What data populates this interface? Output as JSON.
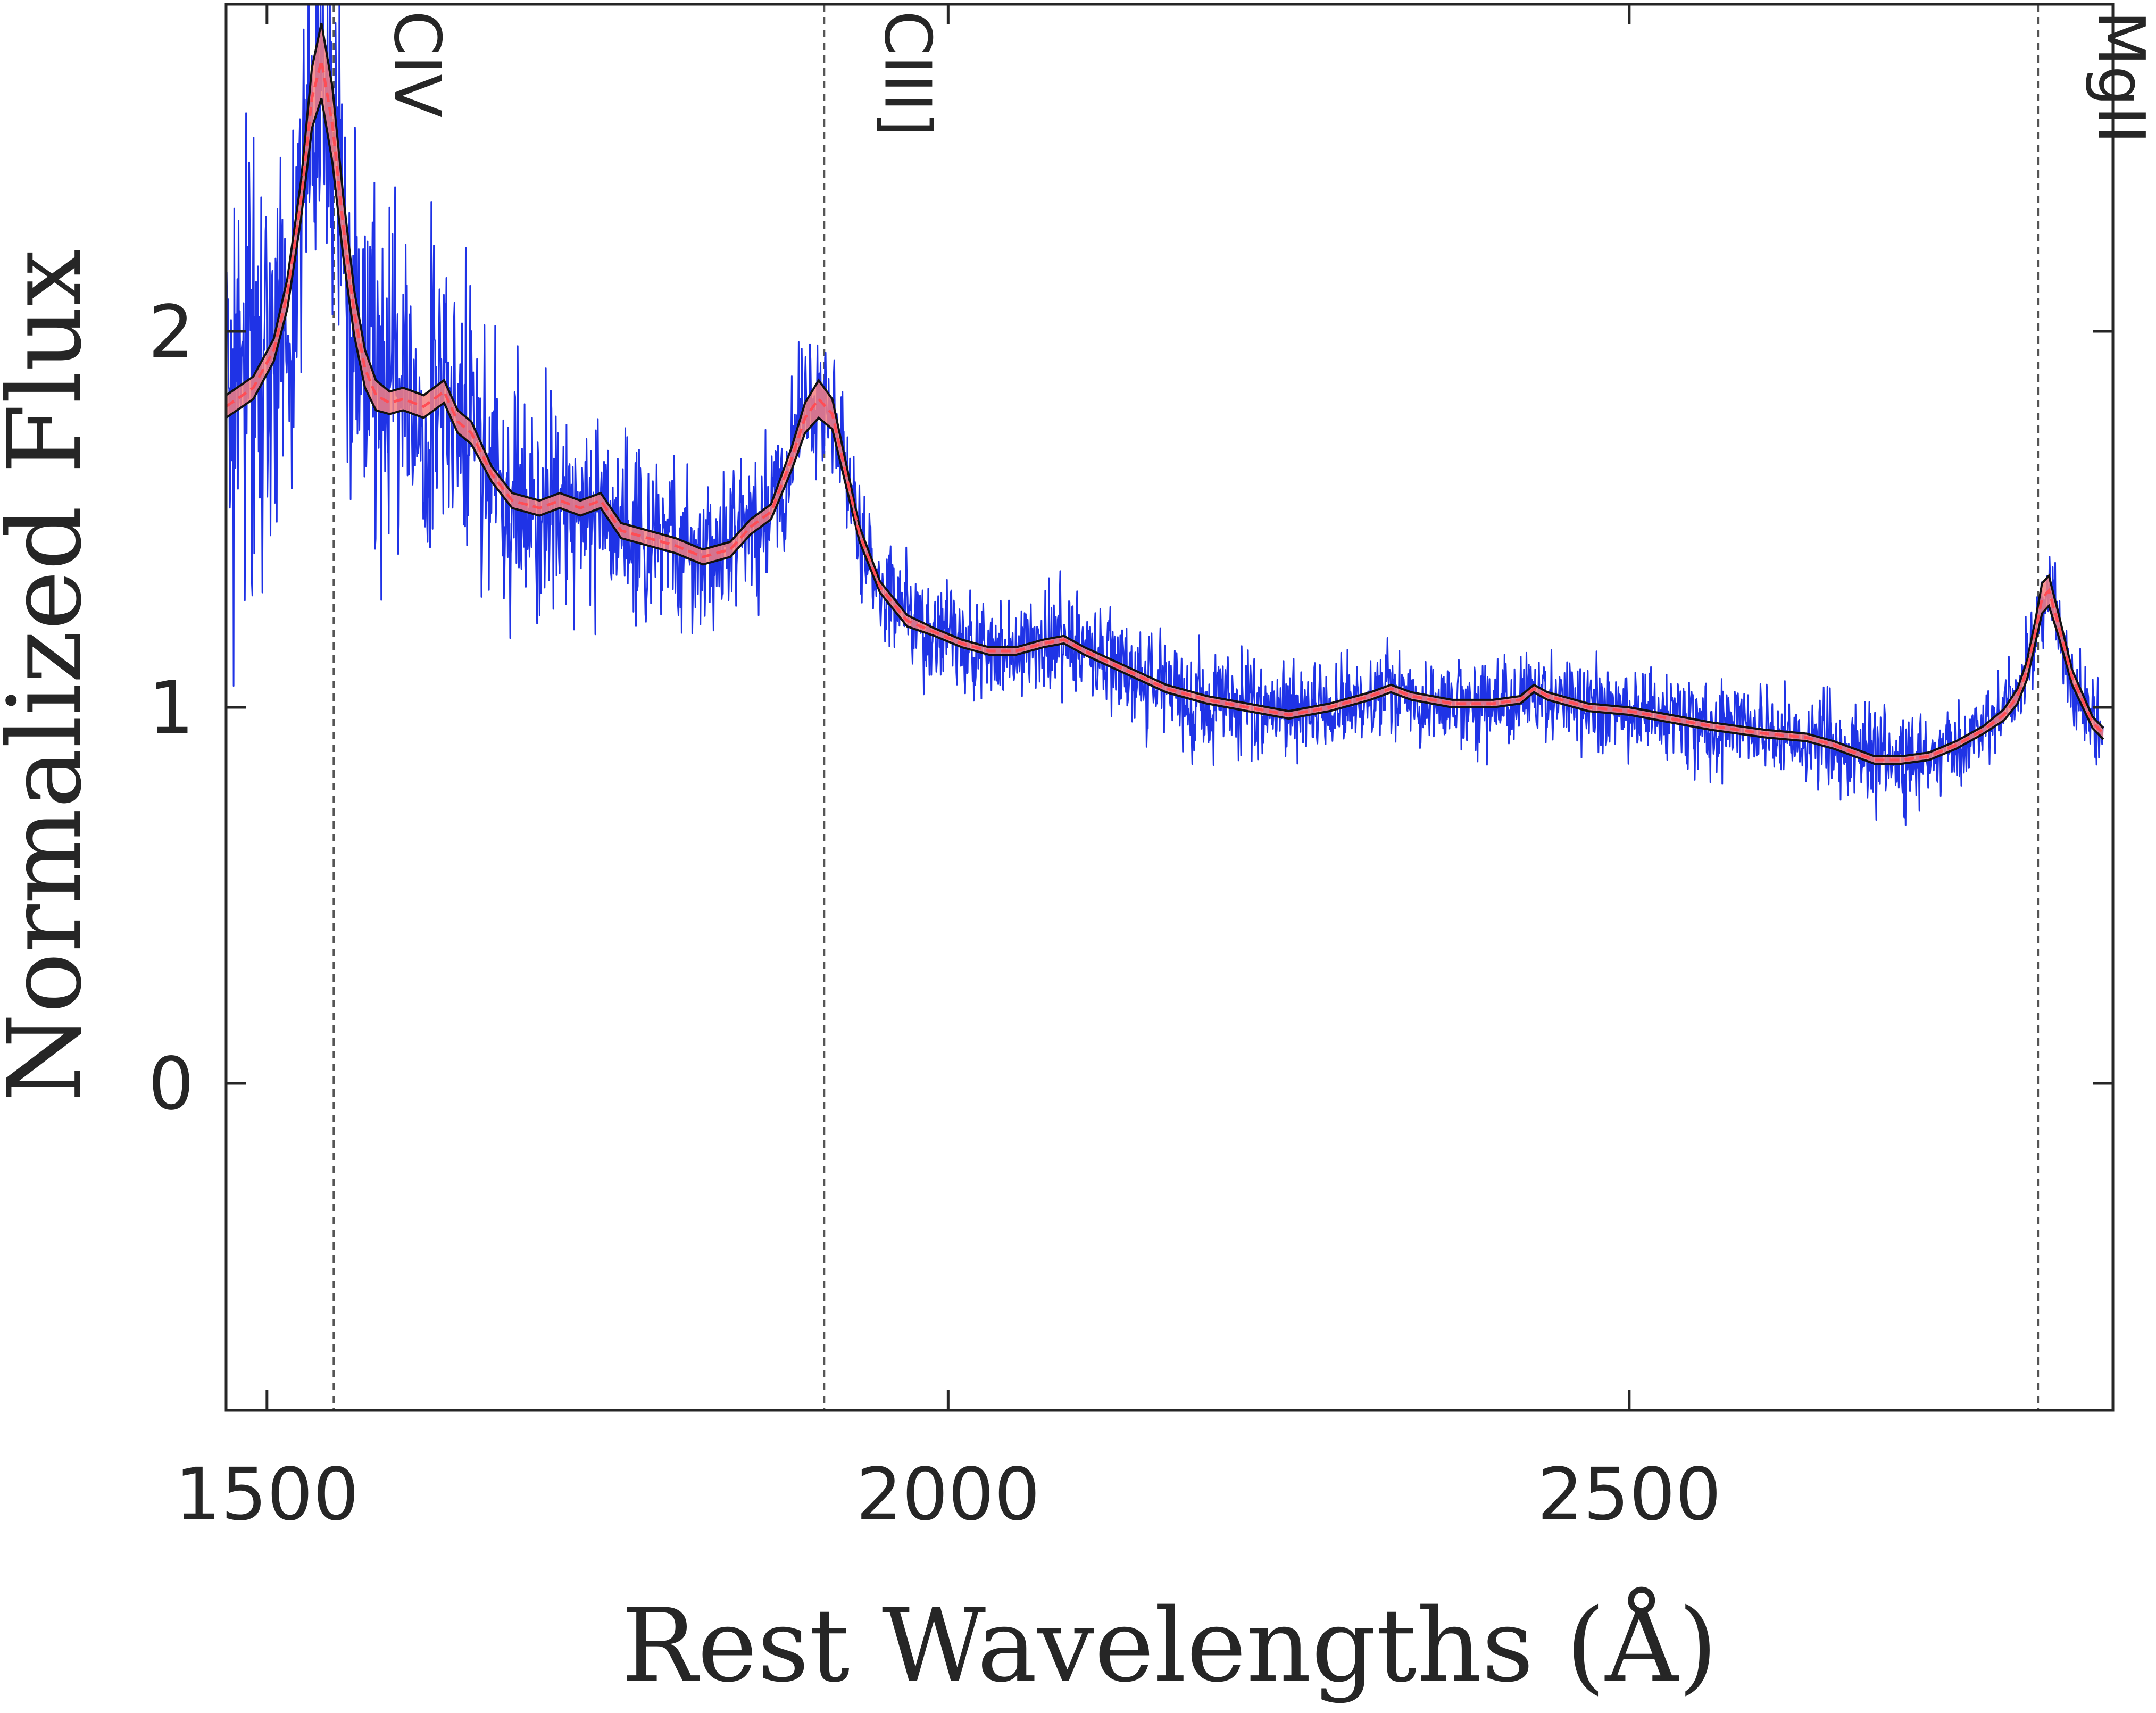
{
  "chart_data": {
    "type": "line",
    "title": "",
    "xlabel": "Rest Wavelengths (Å)",
    "ylabel": "Normalized Flux",
    "xlim": [
      1470,
      2855
    ],
    "ylim": [
      -0.87,
      2.87
    ],
    "xticks": [
      1500,
      2000,
      2500
    ],
    "yticks": [
      0,
      1,
      2
    ],
    "grid": false,
    "legend": "none",
    "colors": {
      "observed": "#1f33e6",
      "band_fill": "#f58080",
      "band_edge": "#111111",
      "model_line": "#ff4d55",
      "reference_line": "#555555",
      "axes": "#262626"
    },
    "reference_lines": [
      {
        "name": "CIV",
        "x": 1549
      },
      {
        "name": "CIII]",
        "x": 1909
      },
      {
        "name": "MgII",
        "x": 2800
      }
    ],
    "model": {
      "x": [
        1470,
        1490,
        1505,
        1515,
        1525,
        1533,
        1540,
        1548,
        1556,
        1564,
        1572,
        1580,
        1590,
        1600,
        1615,
        1630,
        1640,
        1650,
        1665,
        1680,
        1700,
        1715,
        1730,
        1745,
        1760,
        1780,
        1800,
        1820,
        1840,
        1855,
        1870,
        1885,
        1895,
        1905,
        1915,
        1925,
        1935,
        1950,
        1970,
        1990,
        2010,
        2030,
        2050,
        2070,
        2085,
        2100,
        2130,
        2160,
        2190,
        2220,
        2250,
        2280,
        2310,
        2325,
        2340,
        2370,
        2400,
        2420,
        2430,
        2440,
        2470,
        2500,
        2530,
        2560,
        2600,
        2630,
        2650,
        2680,
        2700,
        2720,
        2740,
        2760,
        2775,
        2785,
        2792,
        2798,
        2803,
        2808,
        2815,
        2825,
        2840,
        2848
      ],
      "y": [
        1.8,
        1.85,
        1.95,
        2.1,
        2.35,
        2.62,
        2.72,
        2.55,
        2.28,
        2.05,
        1.9,
        1.83,
        1.81,
        1.82,
        1.8,
        1.84,
        1.76,
        1.73,
        1.62,
        1.55,
        1.53,
        1.55,
        1.53,
        1.55,
        1.47,
        1.45,
        1.43,
        1.4,
        1.42,
        1.48,
        1.52,
        1.66,
        1.77,
        1.82,
        1.78,
        1.62,
        1.46,
        1.32,
        1.23,
        1.2,
        1.17,
        1.15,
        1.15,
        1.17,
        1.18,
        1.15,
        1.1,
        1.05,
        1.02,
        1.0,
        0.98,
        1.0,
        1.03,
        1.05,
        1.03,
        1.01,
        1.01,
        1.02,
        1.05,
        1.03,
        1.0,
        0.99,
        0.97,
        0.95,
        0.93,
        0.92,
        0.9,
        0.86,
        0.86,
        0.87,
        0.9,
        0.94,
        0.98,
        1.03,
        1.1,
        1.2,
        1.29,
        1.31,
        1.22,
        1.08,
        0.96,
        0.93
      ],
      "band_halfwidth": [
        0.03,
        0.03,
        0.03,
        0.04,
        0.05,
        0.08,
        0.1,
        0.1,
        0.08,
        0.06,
        0.05,
        0.04,
        0.03,
        0.03,
        0.03,
        0.03,
        0.03,
        0.03,
        0.02,
        0.02,
        0.02,
        0.02,
        0.02,
        0.02,
        0.02,
        0.02,
        0.02,
        0.02,
        0.02,
        0.02,
        0.02,
        0.03,
        0.04,
        0.05,
        0.04,
        0.03,
        0.02,
        0.015,
        0.015,
        0.01,
        0.01,
        0.01,
        0.01,
        0.01,
        0.01,
        0.01,
        0.01,
        0.01,
        0.01,
        0.01,
        0.01,
        0.01,
        0.01,
        0.01,
        0.01,
        0.01,
        0.01,
        0.01,
        0.01,
        0.01,
        0.01,
        0.01,
        0.01,
        0.01,
        0.01,
        0.01,
        0.01,
        0.01,
        0.01,
        0.01,
        0.01,
        0.01,
        0.015,
        0.02,
        0.025,
        0.03,
        0.04,
        0.04,
        0.03,
        0.02,
        0.015,
        0.015
      ]
    },
    "observed": {
      "x_range": [
        1470,
        2848
      ],
      "noise_level": [
        [
          1470,
          0.55
        ],
        [
          1600,
          0.35
        ],
        [
          1750,
          0.22
        ],
        [
          1900,
          0.16
        ],
        [
          2000,
          0.12
        ],
        [
          2848,
          0.1
        ]
      ]
    }
  }
}
